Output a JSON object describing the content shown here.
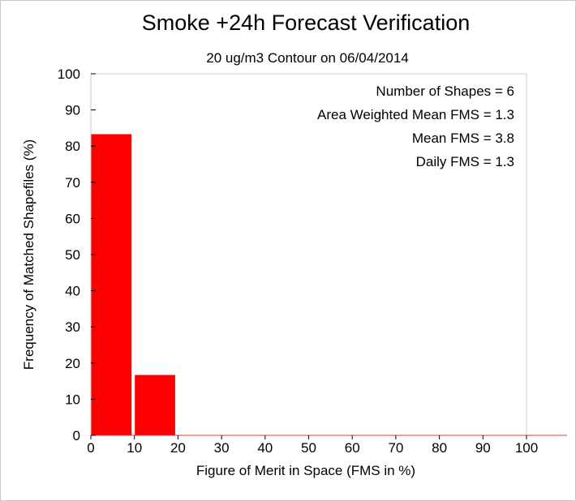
{
  "chart_data": {
    "type": "bar",
    "title": "Smoke +24h Forecast Verification",
    "subtitle": "20 ug/m3 Contour on 06/04/2014",
    "xlabel": "Figure of Merit in Space (FMS in %)",
    "ylabel": "Frequency of Matched Shapefiles (%)",
    "xlim": [
      0,
      100
    ],
    "ylim": [
      0,
      100
    ],
    "xticks": [
      0,
      10,
      20,
      30,
      40,
      50,
      60,
      70,
      80,
      90,
      100
    ],
    "yticks": [
      0,
      10,
      20,
      30,
      40,
      50,
      60,
      70,
      80,
      90,
      100
    ],
    "bins": [
      {
        "start": 0,
        "end": 10,
        "value": 83.3
      },
      {
        "start": 10,
        "end": 20,
        "value": 16.7
      },
      {
        "start": 20,
        "end": 30,
        "value": 0
      },
      {
        "start": 30,
        "end": 40,
        "value": 0
      },
      {
        "start": 40,
        "end": 50,
        "value": 0
      },
      {
        "start": 50,
        "end": 60,
        "value": 0
      },
      {
        "start": 60,
        "end": 70,
        "value": 0
      },
      {
        "start": 70,
        "end": 80,
        "value": 0
      },
      {
        "start": 80,
        "end": 90,
        "value": 0
      },
      {
        "start": 90,
        "end": 100,
        "value": 0
      }
    ],
    "bar_color": "#ff0000",
    "grid": false,
    "annotations": [
      "Number of Shapes = 6",
      "Area Weighted Mean FMS = 1.3",
      "Mean FMS = 3.8",
      "Daily FMS = 1.3"
    ]
  }
}
